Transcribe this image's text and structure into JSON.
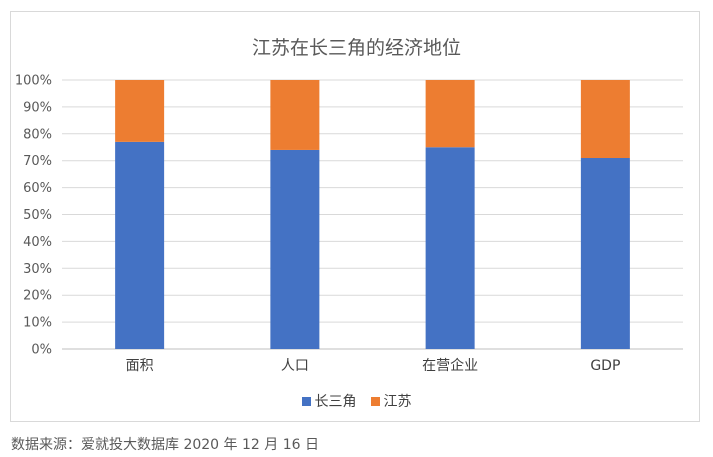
{
  "chart_data": {
    "type": "bar",
    "stacked": true,
    "percent_stacked": true,
    "title": "江苏在长三角的经济地位",
    "categories": [
      "面积",
      "人口",
      "在营企业",
      "GDP"
    ],
    "series": [
      {
        "name": "长三角",
        "values": [
          77,
          74,
          75,
          71
        ],
        "color": "#4472c4"
      },
      {
        "name": "江苏",
        "values": [
          23,
          26,
          25,
          29
        ],
        "color": "#ed7d31"
      }
    ],
    "ylim": [
      0,
      100
    ],
    "yticks": [
      "0%",
      "10%",
      "20%",
      "30%",
      "40%",
      "50%",
      "60%",
      "70%",
      "80%",
      "90%",
      "100%"
    ],
    "grid": true,
    "legend": "bottom"
  },
  "source": "数据来源：爱就投大数据库 2020 年 12 月 16 日",
  "colors": {
    "gridline": "#d9d9d9",
    "axis": "#bfbfbf"
  }
}
